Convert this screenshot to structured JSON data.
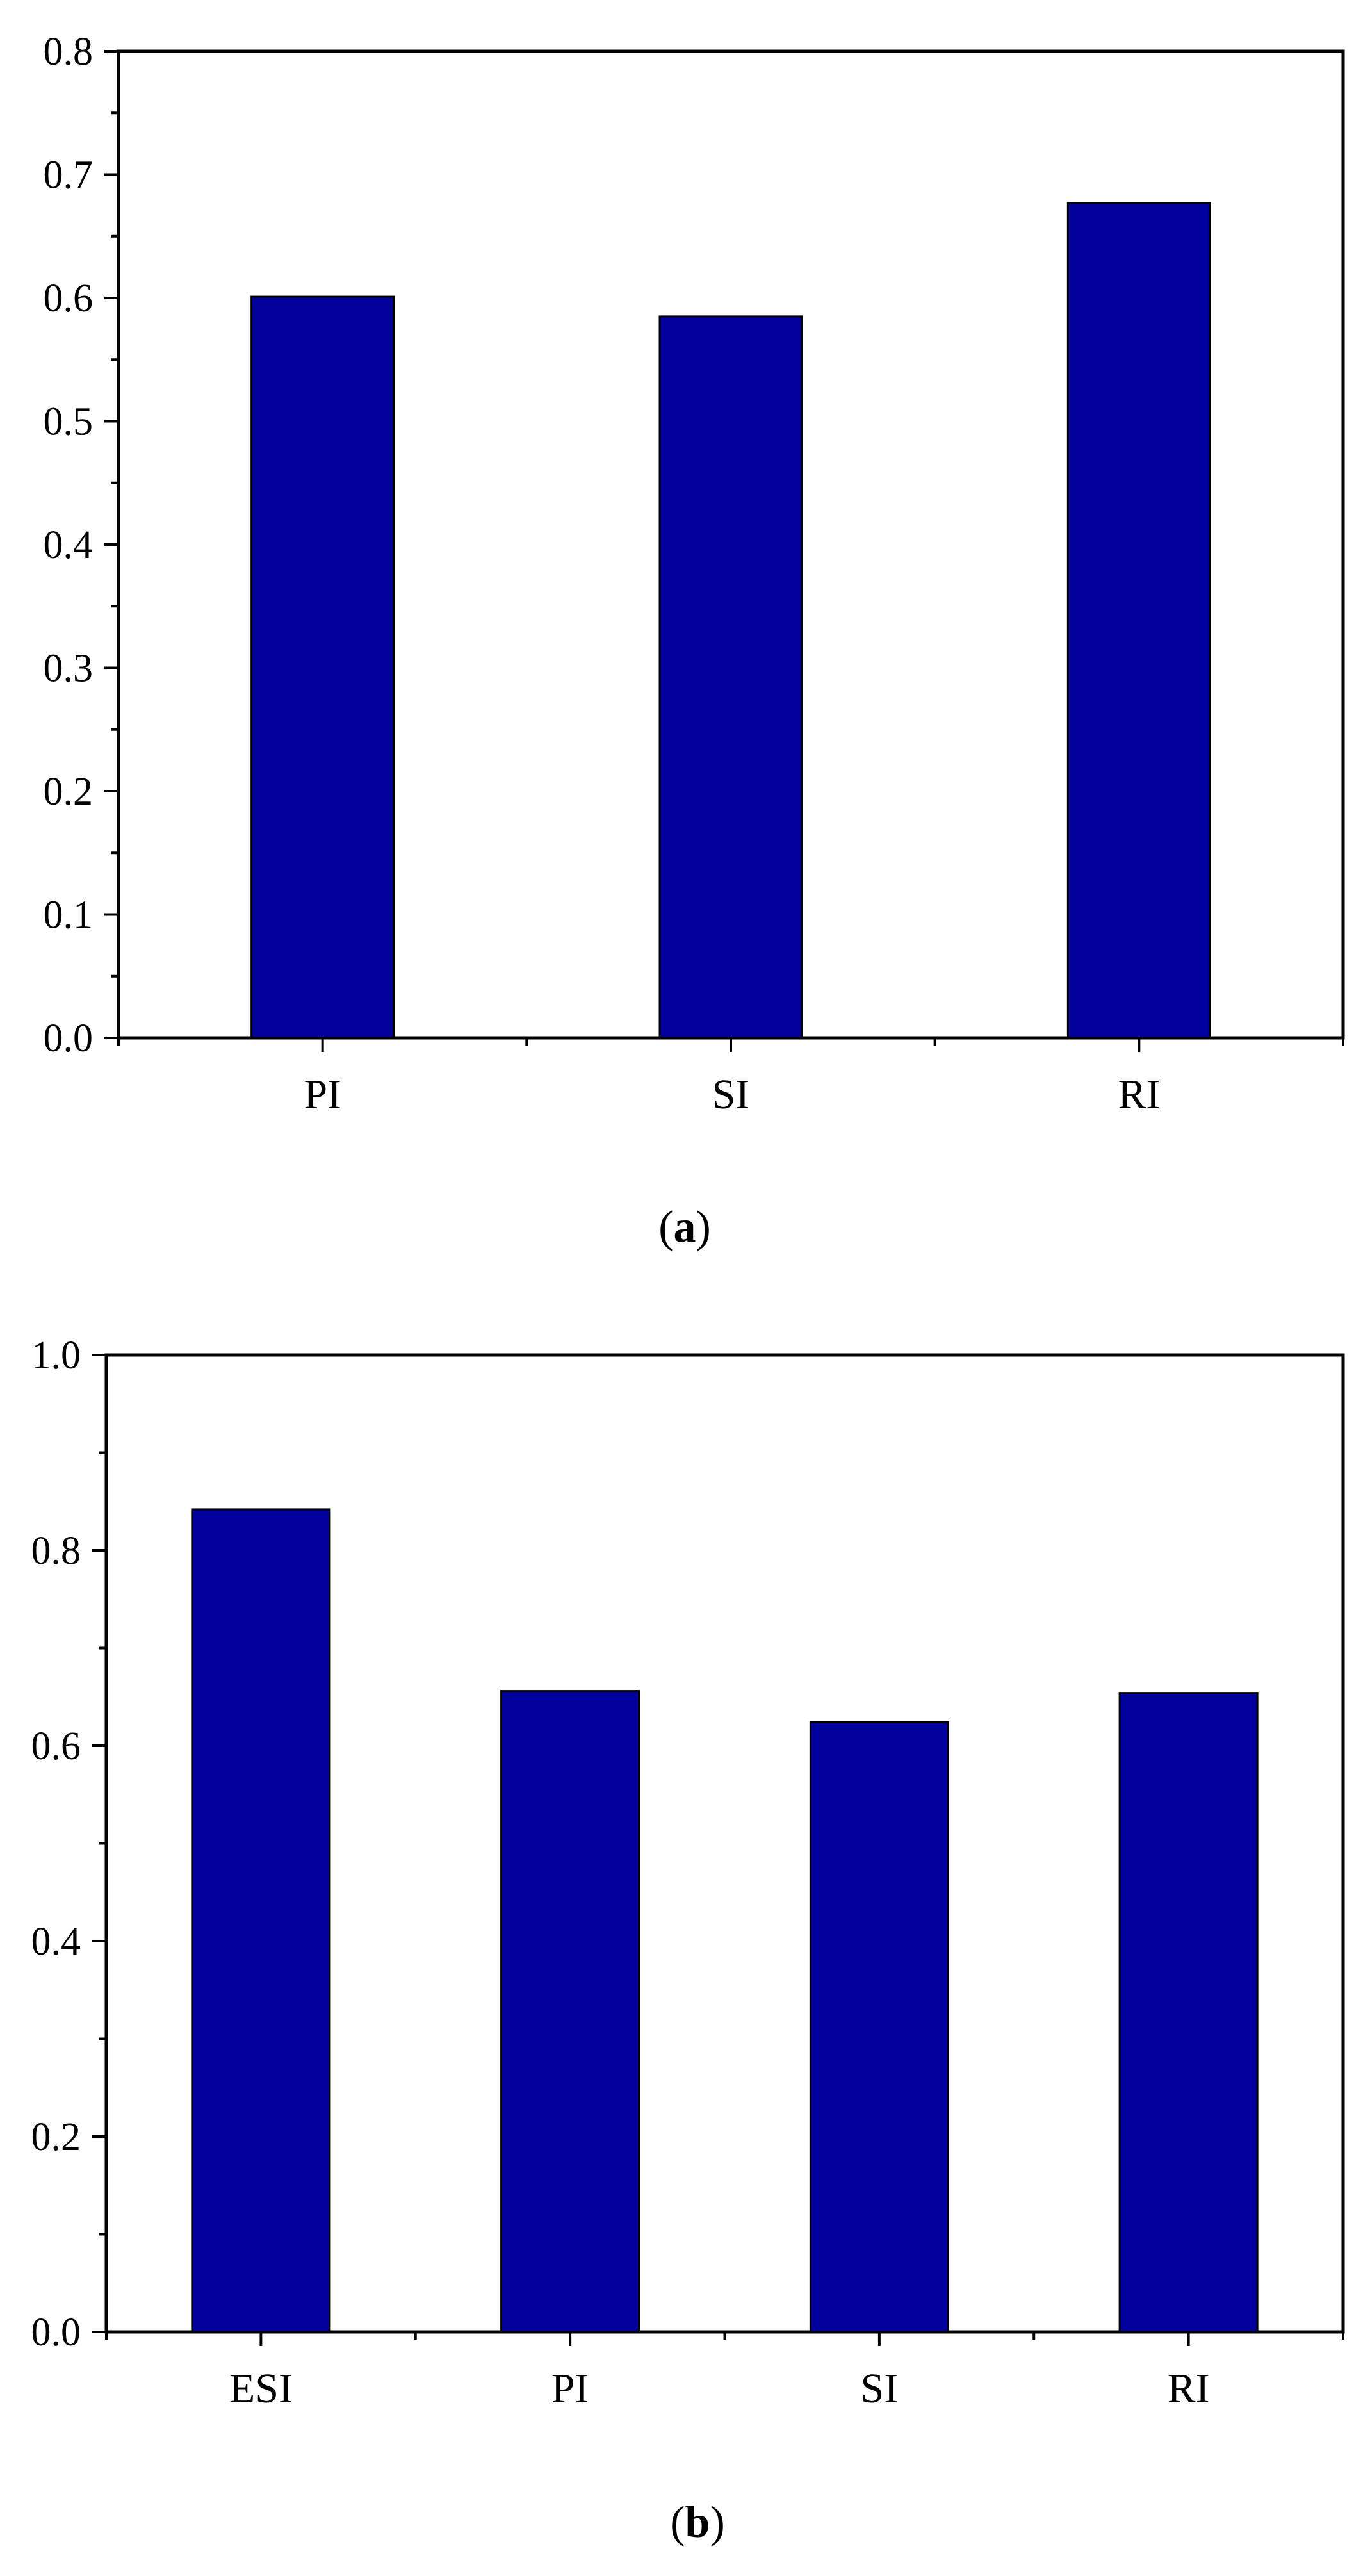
{
  "chart_data": [
    {
      "panel_label": "a",
      "type": "bar",
      "categories": [
        "PI",
        "SI",
        "RI"
      ],
      "values": [
        0.601,
        0.585,
        0.677
      ],
      "title": "",
      "xlabel": "",
      "ylabel": "",
      "ylim": [
        0,
        0.8
      ],
      "yticks": [
        "0.0",
        "0.1",
        "0.2",
        "0.3",
        "0.4",
        "0.5",
        "0.6",
        "0.7",
        "0.8"
      ],
      "bar_color": "#00009c",
      "grid": false,
      "legend": "none"
    },
    {
      "panel_label": "b",
      "type": "bar",
      "categories": [
        "ESI",
        "PI",
        "SI",
        "RI"
      ],
      "values": [
        0.842,
        0.656,
        0.624,
        0.654
      ],
      "title": "",
      "xlabel": "",
      "ylabel": "",
      "ylim": [
        0,
        1.0
      ],
      "yticks": [
        "0.0",
        "0.2",
        "0.4",
        "0.6",
        "0.8",
        "1.0"
      ],
      "bar_color": "#00009c",
      "grid": false,
      "legend": "none"
    }
  ]
}
